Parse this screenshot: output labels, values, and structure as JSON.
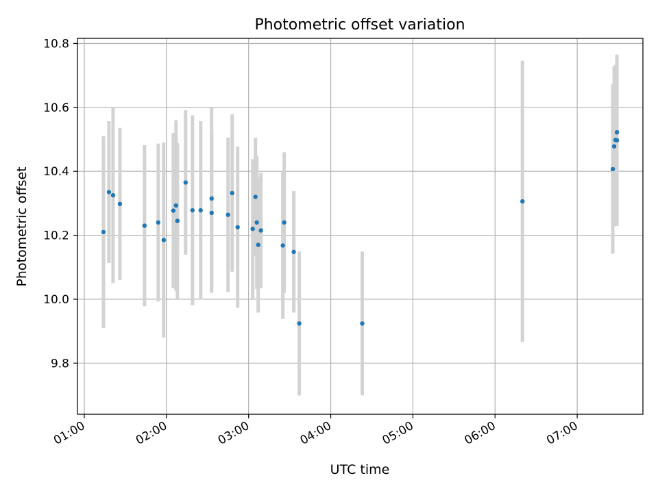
{
  "chart_data": {
    "type": "scatter",
    "title": "Photometric offset variation",
    "xlabel": "UTC time",
    "ylabel": "Photometric offset",
    "x_unit": "UTC time (HH:MM)",
    "xlim": [
      "00:55",
      "07:48"
    ],
    "ylim": [
      9.64,
      10.816
    ],
    "x_ticks": [
      "01:00",
      "02:00",
      "03:00",
      "04:00",
      "05:00",
      "06:00",
      "07:00"
    ],
    "y_ticks": [
      9.8,
      10.0,
      10.2,
      10.4,
      10.6,
      10.8
    ],
    "grid": true,
    "point_color": "#1f77b4",
    "errorbar_color": "#d3d3d3",
    "series": [
      {
        "points": [
          {
            "x": "01:14",
            "y": 10.21,
            "yerr": 0.3
          },
          {
            "x": "01:18",
            "y": 10.335,
            "yerr": 0.222
          },
          {
            "x": "01:21",
            "y": 10.325,
            "yerr": 0.275
          },
          {
            "x": "01:26",
            "y": 10.298,
            "yerr": 0.238
          },
          {
            "x": "01:44",
            "y": 10.23,
            "yerr": 0.252
          },
          {
            "x": "01:54",
            "y": 10.24,
            "yerr": 0.247
          },
          {
            "x": "01:58",
            "y": 10.185,
            "yerr": 0.305
          },
          {
            "x": "02:05",
            "y": 10.277,
            "yerr": 0.243
          },
          {
            "x": "02:07",
            "y": 10.293,
            "yerr": 0.267
          },
          {
            "x": "02:08",
            "y": 10.245,
            "yerr": 0.243
          },
          {
            "x": "02:14",
            "y": 10.365,
            "yerr": 0.226
          },
          {
            "x": "02:19",
            "y": 10.278,
            "yerr": 0.297
          },
          {
            "x": "02:25",
            "y": 10.278,
            "yerr": 0.279
          },
          {
            "x": "02:33",
            "y": 10.27,
            "yerr": 0.25
          },
          {
            "x": "02:33",
            "y": 10.315,
            "yerr": 0.285
          },
          {
            "x": "02:45",
            "y": 10.264,
            "yerr": 0.242
          },
          {
            "x": "02:48",
            "y": 10.332,
            "yerr": 0.246
          },
          {
            "x": "02:52",
            "y": 10.225,
            "yerr": 0.252
          },
          {
            "x": "03:03",
            "y": 10.22,
            "yerr": 0.218
          },
          {
            "x": "03:05",
            "y": 10.32,
            "yerr": 0.185
          },
          {
            "x": "03:06",
            "y": 10.24,
            "yerr": 0.208
          },
          {
            "x": "03:07",
            "y": 10.17,
            "yerr": 0.212
          },
          {
            "x": "03:09",
            "y": 10.215,
            "yerr": 0.18
          },
          {
            "x": "03:25",
            "y": 10.168,
            "yerr": 0.23
          },
          {
            "x": "03:26",
            "y": 10.24,
            "yerr": 0.22
          },
          {
            "x": "03:33",
            "y": 10.148,
            "yerr": 0.19
          },
          {
            "x": "03:37",
            "y": 9.924,
            "yerr": 0.225
          },
          {
            "x": "04:23",
            "y": 9.924,
            "yerr": 0.225
          },
          {
            "x": "06:20",
            "y": 10.306,
            "yerr": 0.44
          },
          {
            "x": "07:26",
            "y": 10.407,
            "yerr": 0.265
          },
          {
            "x": "07:27",
            "y": 10.478,
            "yerr": 0.25
          },
          {
            "x": "07:28",
            "y": 10.498,
            "yerr": 0.235
          },
          {
            "x": "07:29",
            "y": 10.497,
            "yerr": 0.268
          },
          {
            "x": "07:29",
            "y": 10.522,
            "yerr": 0.225
          }
        ]
      }
    ]
  }
}
